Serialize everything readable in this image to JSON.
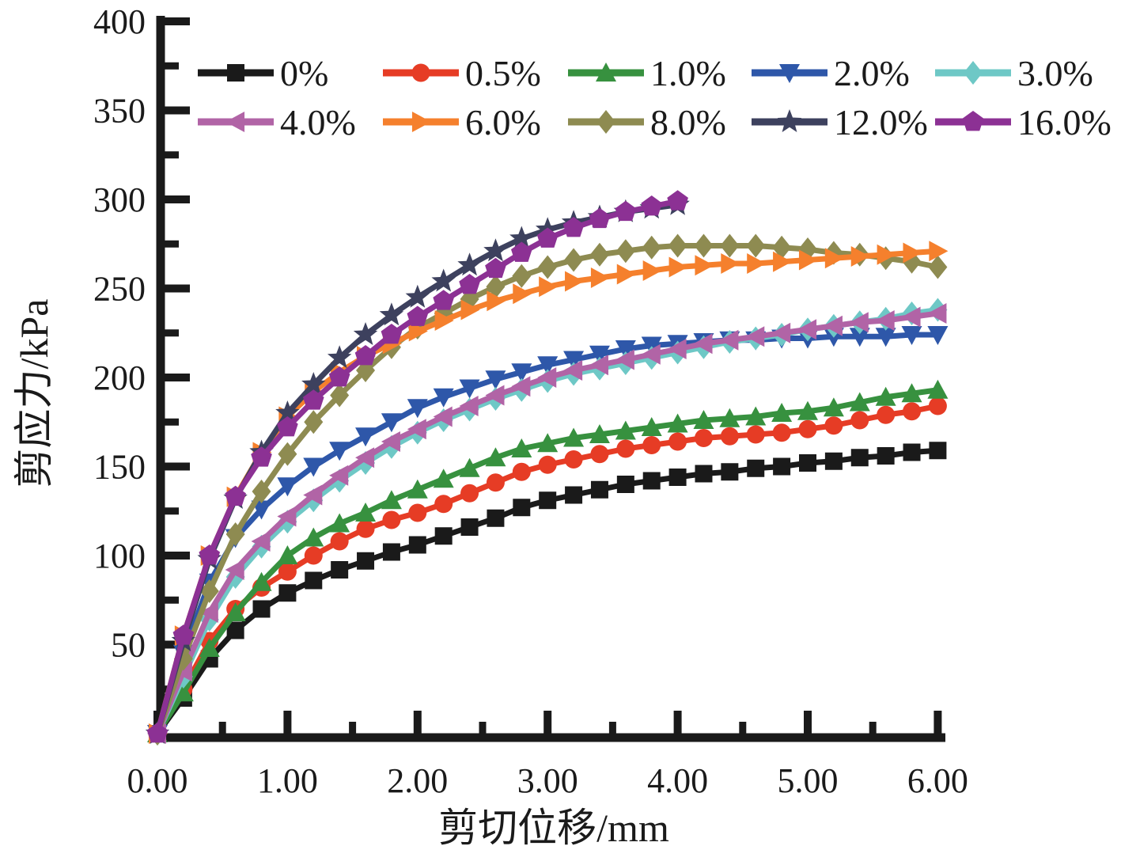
{
  "figure": {
    "background": "#ffffff",
    "text_color": "#1a1a1a"
  },
  "chart_data": {
    "type": "line",
    "title": "",
    "xlabel": "剪切位移/mm",
    "ylabel": "剪应力/kPa",
    "xlim": [
      0,
      6.5
    ],
    "ylim": [
      0,
      400
    ],
    "grid": false,
    "legend_position": "top-inside-two-rows",
    "x_major_ticks": [
      0,
      1,
      2,
      3,
      4,
      5,
      6
    ],
    "x_tick_labels": [
      "0.00",
      "1.00",
      "2.00",
      "3.00",
      "4.00",
      "5.00",
      "6.00"
    ],
    "x_minor_ticks": [
      0.5,
      1.5,
      2.5,
      3.5,
      4.5,
      5.5
    ],
    "y_major_ticks": [
      50,
      100,
      150,
      200,
      250,
      300,
      350,
      400
    ],
    "y_tick_labels": [
      "50",
      "100",
      "150",
      "200",
      "250",
      "300",
      "350",
      "400"
    ],
    "y_minor_ticks": [
      25,
      75,
      125,
      175,
      225,
      275,
      325,
      375
    ],
    "series": [
      {
        "name": "0%",
        "color": "#1a1a1a",
        "marker": "square",
        "x": [
          0,
          0.2,
          0.4,
          0.6,
          0.8,
          1,
          1.2,
          1.4,
          1.6,
          1.8,
          2,
          2.2,
          2.4,
          2.6,
          2.8,
          3,
          3.2,
          3.4,
          3.6,
          3.8,
          4,
          4.2,
          4.4,
          4.6,
          4.8,
          5,
          5.2,
          5.4,
          5.6,
          5.8,
          6
        ],
        "y": [
          0,
          20,
          42,
          58,
          70,
          79,
          86,
          92,
          97,
          102,
          106,
          111,
          116,
          121,
          127,
          131,
          134,
          137,
          140,
          142,
          144,
          146,
          147,
          149,
          150,
          152,
          153,
          155,
          156,
          158,
          159
        ]
      },
      {
        "name": "0.5%",
        "color": "#e63c25",
        "marker": "circle",
        "x": [
          0,
          0.2,
          0.4,
          0.6,
          0.8,
          1,
          1.2,
          1.4,
          1.6,
          1.8,
          2,
          2.2,
          2.4,
          2.6,
          2.8,
          3,
          3.2,
          3.4,
          3.6,
          3.8,
          4,
          4.2,
          4.4,
          4.6,
          4.8,
          5,
          5.2,
          5.4,
          5.6,
          5.8,
          6
        ],
        "y": [
          0,
          25,
          52,
          70,
          82,
          91,
          100,
          108,
          115,
          120,
          124,
          129,
          135,
          141,
          147,
          151,
          154,
          157,
          160,
          162,
          164,
          166,
          167,
          168,
          169,
          171,
          173,
          176,
          179,
          181,
          184
        ]
      },
      {
        "name": "1.0%",
        "color": "#37913f",
        "marker": "triangle-up",
        "x": [
          0,
          0.2,
          0.4,
          0.6,
          0.8,
          1,
          1.2,
          1.4,
          1.6,
          1.8,
          2,
          2.2,
          2.4,
          2.6,
          2.8,
          3,
          3.2,
          3.4,
          3.6,
          3.8,
          4,
          4.2,
          4.4,
          4.6,
          4.8,
          5,
          5.2,
          5.4,
          5.6,
          5.8,
          6
        ],
        "y": [
          0,
          23,
          48,
          68,
          85,
          100,
          110,
          118,
          124,
          131,
          137,
          143,
          149,
          155,
          160,
          163,
          166,
          168,
          170,
          172,
          174,
          176,
          177,
          178,
          180,
          181,
          183,
          186,
          189,
          191,
          193
        ]
      },
      {
        "name": "2.0%",
        "color": "#2e57a9",
        "marker": "triangle-down",
        "x": [
          0,
          0.2,
          0.4,
          0.6,
          0.8,
          1,
          1.2,
          1.4,
          1.6,
          1.8,
          2,
          2.2,
          2.4,
          2.6,
          2.8,
          3,
          3.2,
          3.4,
          3.6,
          3.8,
          4,
          4.2,
          4.4,
          4.6,
          4.8,
          5,
          5.2,
          5.4,
          5.6,
          5.8,
          6
        ],
        "y": [
          0,
          45,
          85,
          110,
          126,
          139,
          150,
          159,
          167,
          175,
          183,
          189,
          194,
          199,
          203,
          207,
          210,
          213,
          216,
          218,
          219,
          220,
          221,
          221,
          222,
          222,
          223,
          223,
          223,
          224,
          224
        ]
      },
      {
        "name": "3.0%",
        "color": "#6ec8c6",
        "marker": "diamond",
        "x": [
          0,
          0.2,
          0.4,
          0.6,
          0.8,
          1,
          1.2,
          1.4,
          1.6,
          1.8,
          2,
          2.2,
          2.4,
          2.6,
          2.8,
          3,
          3.2,
          3.4,
          3.6,
          3.8,
          4,
          4.2,
          4.4,
          4.6,
          4.8,
          5,
          5.2,
          5.4,
          5.6,
          5.8,
          6
        ],
        "y": [
          0,
          32,
          64,
          88,
          105,
          119,
          131,
          142,
          152,
          161,
          169,
          176,
          182,
          188,
          193,
          198,
          202,
          205,
          208,
          211,
          214,
          217,
          220,
          222,
          224,
          227,
          229,
          231,
          233,
          236,
          238
        ]
      },
      {
        "name": "4.0%",
        "color": "#b164a6",
        "marker": "triangle-left",
        "x": [
          0,
          0.2,
          0.4,
          0.6,
          0.8,
          1,
          1.2,
          1.4,
          1.6,
          1.8,
          2,
          2.2,
          2.4,
          2.6,
          2.8,
          3,
          3.2,
          3.4,
          3.6,
          3.8,
          4,
          4.2,
          4.4,
          4.6,
          4.8,
          5,
          5.2,
          5.4,
          5.6,
          5.8,
          6
        ],
        "y": [
          0,
          35,
          68,
          92,
          108,
          122,
          134,
          145,
          155,
          164,
          171,
          178,
          184,
          190,
          195,
          200,
          204,
          207,
          210,
          213,
          216,
          219,
          221,
          223,
          225,
          227,
          229,
          231,
          232,
          234,
          236
        ]
      },
      {
        "name": "6.0%",
        "color": "#f5802d",
        "marker": "triangle-right",
        "x": [
          0,
          0.2,
          0.4,
          0.6,
          0.8,
          1,
          1.2,
          1.4,
          1.6,
          1.8,
          2,
          2.2,
          2.4,
          2.6,
          2.8,
          3,
          3.2,
          3.4,
          3.6,
          3.8,
          4,
          4.2,
          4.4,
          4.6,
          4.8,
          5,
          5.2,
          5.4,
          5.6,
          5.8,
          6
        ],
        "y": [
          0,
          55,
          100,
          133,
          158,
          178,
          192,
          203,
          212,
          219,
          226,
          232,
          238,
          243,
          247,
          251,
          254,
          256,
          258,
          260,
          262,
          263,
          264,
          264,
          265,
          266,
          267,
          268,
          269,
          270,
          271
        ]
      },
      {
        "name": "8.0%",
        "color": "#8e8b51",
        "marker": "diamond",
        "x": [
          0,
          0.2,
          0.4,
          0.6,
          0.8,
          1,
          1.2,
          1.4,
          1.6,
          1.8,
          2,
          2.2,
          2.4,
          2.6,
          2.8,
          3,
          3.2,
          3.4,
          3.6,
          3.8,
          4,
          4.2,
          4.4,
          4.6,
          4.8,
          5,
          5.2,
          5.4,
          5.6,
          5.8,
          6
        ],
        "y": [
          0,
          42,
          80,
          112,
          136,
          157,
          175,
          190,
          204,
          217,
          228,
          236,
          244,
          251,
          257,
          262,
          266,
          269,
          271,
          273,
          274,
          274,
          274,
          274,
          273,
          272,
          270,
          269,
          267,
          265,
          262
        ]
      },
      {
        "name": "12.0%",
        "color": "#3d415e",
        "marker": "star",
        "x": [
          0,
          0.2,
          0.4,
          0.6,
          0.8,
          1,
          1.2,
          1.4,
          1.6,
          1.8,
          2,
          2.2,
          2.4,
          2.6,
          2.8,
          3,
          3.2,
          3.4,
          3.6,
          3.8,
          4
        ],
        "y": [
          0,
          52,
          98,
          132,
          158,
          180,
          196,
          211,
          224,
          235,
          245,
          254,
          263,
          271,
          278,
          283,
          287,
          290,
          293,
          295,
          297
        ]
      },
      {
        "name": "16.0%",
        "color": "#8c3194",
        "marker": "pentagon",
        "x": [
          0,
          0.2,
          0.4,
          0.6,
          0.8,
          1,
          1.2,
          1.4,
          1.6,
          1.8,
          2,
          2.2,
          2.4,
          2.6,
          2.8,
          3,
          3.2,
          3.4,
          3.6,
          3.8,
          4
        ],
        "y": [
          0,
          55,
          100,
          133,
          155,
          172,
          187,
          200,
          212,
          224,
          234,
          243,
          252,
          261,
          270,
          278,
          284,
          289,
          293,
          296,
          299
        ]
      }
    ],
    "draw_order": [
      0,
      1,
      2,
      3,
      4,
      5,
      7,
      6,
      8,
      9
    ],
    "legend_rows": [
      [
        "0%",
        "0.5%",
        "1.0%",
        "2.0%",
        "3.0%"
      ],
      [
        "4.0%",
        "6.0%",
        "8.0%",
        "12.0%",
        "16.0%"
      ]
    ]
  }
}
